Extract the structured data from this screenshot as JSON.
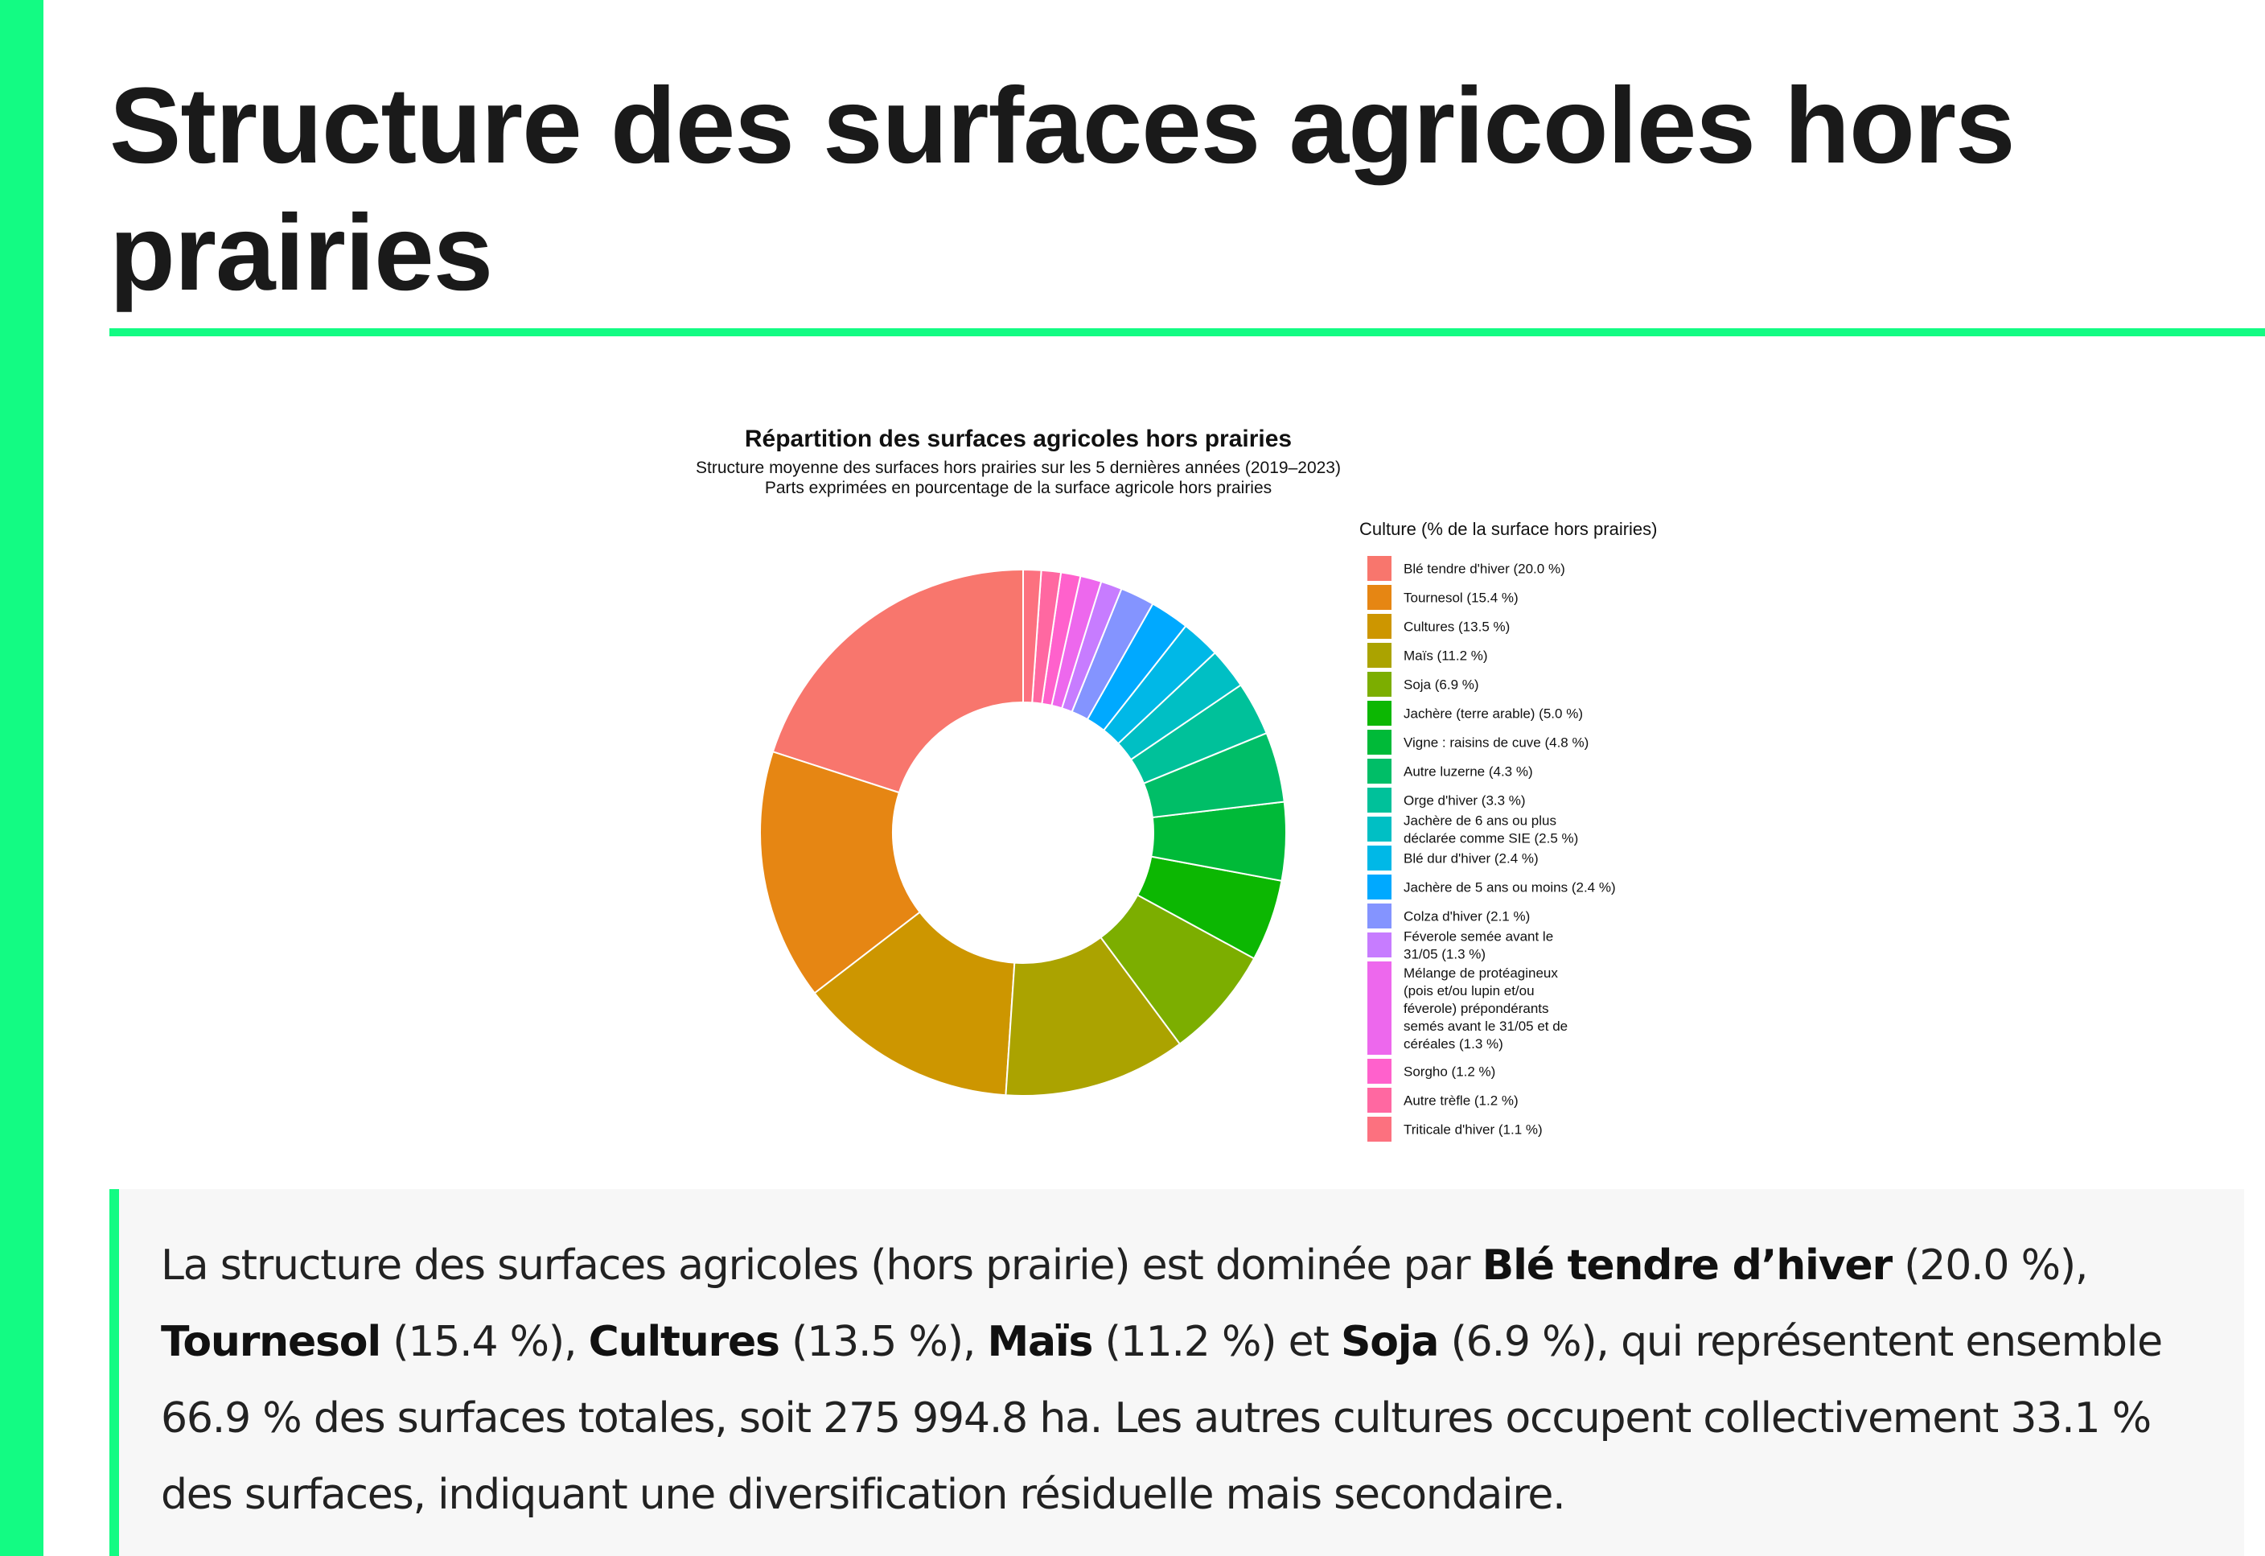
{
  "page": {
    "title": "Structure des surfaces agricoles hors prairies",
    "accent_color": "#13fb83"
  },
  "chart_data": {
    "type": "pie",
    "variant": "donut",
    "title": "Répartition des surfaces agricoles hors prairies",
    "subtitle_line1": "Structure moyenne des surfaces hors prairies sur les 5 dernières années (2019–2023)",
    "subtitle_line2": "Parts exprimées en pourcentage de la surface agricole hors prairies",
    "legend_title": "Culture (% de la surface hors prairies)",
    "legend_position": "right",
    "slices": [
      {
        "label_lines": [
          "Blé tendre d'hiver (20.0 %)"
        ],
        "value": 20.0,
        "color": "#F8766D"
      },
      {
        "label_lines": [
          "Tournesol (15.4 %)"
        ],
        "value": 15.4,
        "color": "#E68613"
      },
      {
        "label_lines": [
          "Cultures (13.5 %)"
        ],
        "value": 13.5,
        "color": "#CD9600"
      },
      {
        "label_lines": [
          "Maïs (11.2 %)"
        ],
        "value": 11.2,
        "color": "#ABA300"
      },
      {
        "label_lines": [
          "Soja (6.9 %)"
        ],
        "value": 6.9,
        "color": "#7CAE00"
      },
      {
        "label_lines": [
          "Jachère (terre arable) (5.0 %)"
        ],
        "value": 5.0,
        "color": "#0CB702"
      },
      {
        "label_lines": [
          "Vigne : raisins de cuve (4.8 %)"
        ],
        "value": 4.8,
        "color": "#00BA38"
      },
      {
        "label_lines": [
          "Autre luzerne (4.3 %)"
        ],
        "value": 4.3,
        "color": "#00BE67"
      },
      {
        "label_lines": [
          "Orge d'hiver (3.3 %)"
        ],
        "value": 3.3,
        "color": "#00C19A"
      },
      {
        "label_lines": [
          "Jachère de 6 ans ou plus",
          "déclarée comme SIE (2.5 %)"
        ],
        "value": 2.5,
        "color": "#00BFC4"
      },
      {
        "label_lines": [
          "Blé dur d'hiver (2.4 %)"
        ],
        "value": 2.4,
        "color": "#00B8E7"
      },
      {
        "label_lines": [
          "Jachère de 5 ans ou moins (2.4 %)"
        ],
        "value": 2.4,
        "color": "#00A9FF"
      },
      {
        "label_lines": [
          "Colza d'hiver (2.1 %)"
        ],
        "value": 2.1,
        "color": "#8494FF"
      },
      {
        "label_lines": [
          "Féverole semée avant le",
          "31/05 (1.3 %)"
        ],
        "value": 1.3,
        "color": "#C77CFF"
      },
      {
        "label_lines": [
          "Mélange de protéagineux",
          "(pois et/ou lupin et/ou",
          "féverole) prépondérants",
          "semés avant le 31/05 et de",
          "céréales (1.3 %)"
        ],
        "value": 1.3,
        "color": "#ED68ED"
      },
      {
        "label_lines": [
          "Sorgho (1.2 %)"
        ],
        "value": 1.2,
        "color": "#FF61CC"
      },
      {
        "label_lines": [
          "Autre trèfle (1.2 %)"
        ],
        "value": 1.2,
        "color": "#FF68A1"
      },
      {
        "label_lines": [
          "Triticale d'hiver (1.1 %)"
        ],
        "value": 1.1,
        "color": "#FC717F"
      }
    ]
  },
  "summary": {
    "s1": "La structure des surfaces agricoles (hors prairie) est dominée par ",
    "b1": "Blé tendre d’hiver",
    "s2": " (20.0 %), ",
    "b2": "Tournesol",
    "s3": " (15.4 %), ",
    "b3": "Cultures",
    "s4": " (13.5 %), ",
    "b4": "Maïs",
    "s5": " (11.2 %) et ",
    "b5": "Soja",
    "s6": " (6.9 %), qui représentent ensemble 66.9 % des surfaces totales, soit 275 994.8 ha. Les autres cultures occupent collectivement 33.1 % des surfaces, indiquant une diversification résiduelle mais secondaire."
  }
}
